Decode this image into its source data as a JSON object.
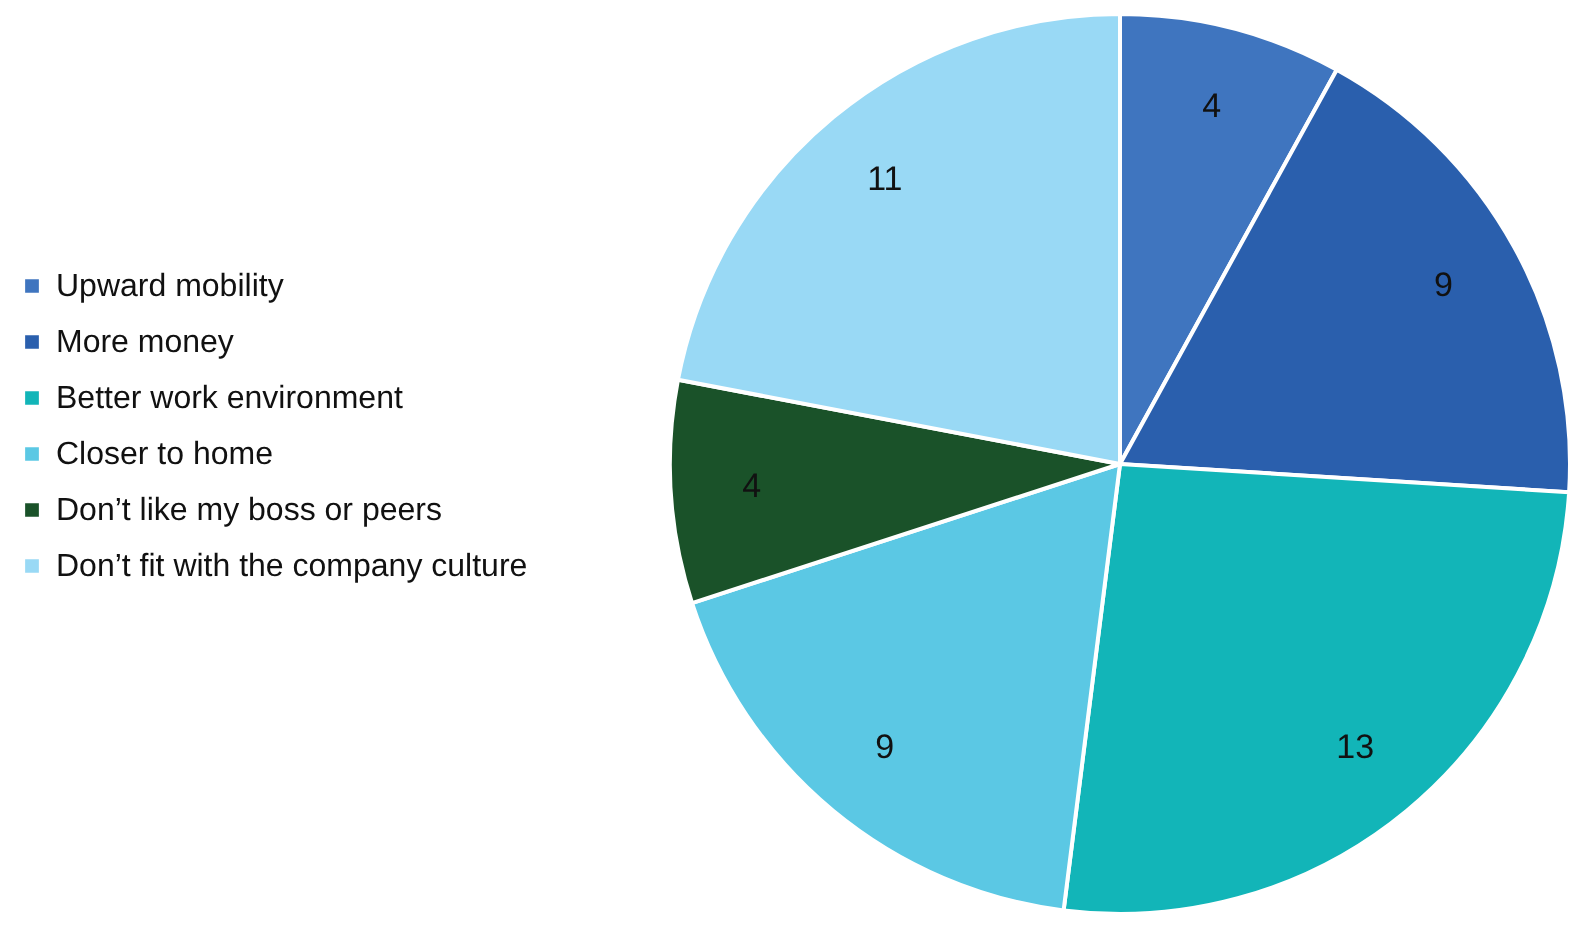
{
  "chart_data": {
    "type": "pie",
    "categories": [
      "Upward mobility",
      "More money",
      "Better work environment",
      "Closer to home",
      "Don’t like my boss or peers",
      "Don’t fit with the company culture"
    ],
    "values": [
      4,
      9,
      13,
      9,
      4,
      11
    ],
    "colors": [
      "#3f75bf",
      "#2a5fad",
      "#12b5b8",
      "#5bc8e4",
      "#1a5229",
      "#99d9f5"
    ],
    "data_labels": true,
    "legend": "left"
  }
}
